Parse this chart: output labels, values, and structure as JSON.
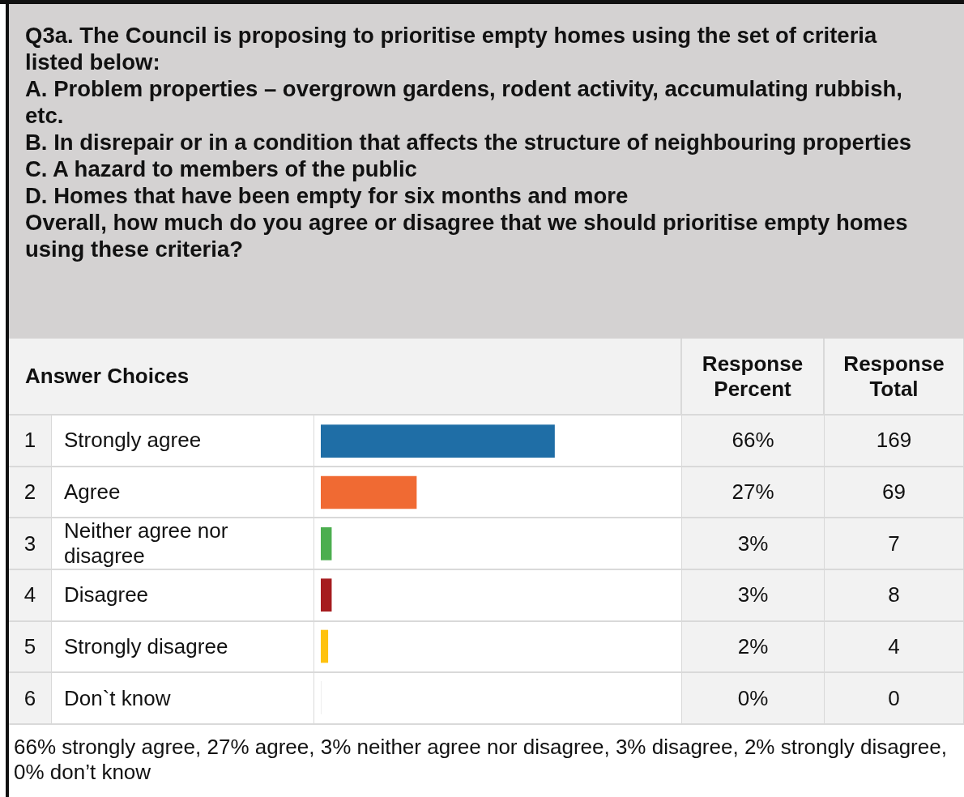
{
  "chart_data": {
    "type": "bar",
    "orientation": "horizontal",
    "title": "Q3a. The Council is proposing to prioritise empty homes using the set of criteria listed below:\nA.  Problem properties – overgrown gardens, rodent activity, accumulating rubbish, etc.\nB.  In disrepair or in a condition that affects the structure of neighbouring properties\nC.  A hazard to members of the public\nD.  Homes that have been empty for six months and more\nOverall, how much do you agree or disagree that we should prioritise empty homes using these criteria?",
    "ylabel": "Answer Choices",
    "categories": [
      "Strongly agree",
      "Agree",
      "Neither agree nor disagree",
      "Disagree",
      "Strongly disagree",
      "Don`t know"
    ],
    "values": [
      66,
      27,
      3,
      3,
      2,
      0
    ],
    "colors": [
      "#1f6ea6",
      "#f06a33",
      "#4cae4f",
      "#a61c1f",
      "#ffc20e",
      "#cccccc"
    ],
    "value_labels": [
      "66%",
      "27%",
      "3%",
      "3%",
      "2%",
      "0%"
    ],
    "annotations": [
      "Response Percent",
      "1",
      "2",
      "3",
      "4",
      "5",
      "6",
      "169",
      "69",
      "7",
      "8",
      "4",
      "0",
      "Response Total",
      "66% strongly agree, 27% agree, 3% neither agree nor disagree, 3% disagree, 2% strongly disagree, 0% don’t know"
    ]
  }
}
